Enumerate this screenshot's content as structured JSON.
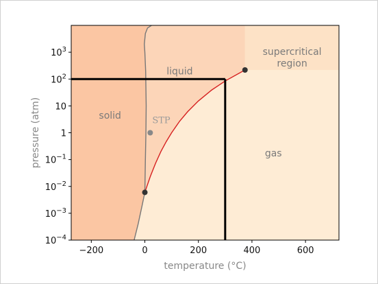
{
  "chart_data": {
    "type": "line",
    "title": "",
    "xlabel": "temperature (°C)",
    "ylabel": "pressure (atm)",
    "xlim": [
      -275,
      725
    ],
    "ylim_log10": [
      -4,
      4.0
    ],
    "yscale": "log",
    "x_ticks": [
      {
        "value": -200,
        "label": "−200"
      },
      {
        "value": 0,
        "label": "0"
      },
      {
        "value": 200,
        "label": "200"
      },
      {
        "value": 400,
        "label": "400"
      },
      {
        "value": 600,
        "label": "600"
      }
    ],
    "y_ticks": [
      {
        "exp": -4,
        "base": "10",
        "sup": "−4"
      },
      {
        "exp": -3,
        "base": "10",
        "sup": "−3"
      },
      {
        "exp": -2,
        "base": "10",
        "sup": "−2"
      },
      {
        "exp": -1,
        "base": "10",
        "sup": "−1"
      },
      {
        "exp": 0,
        "base": "1",
        "sup": ""
      },
      {
        "exp": 1,
        "base": "10",
        "sup": ""
      },
      {
        "exp": 2,
        "base": "10",
        "sup": "2"
      },
      {
        "exp": 3,
        "base": "10",
        "sup": "3"
      }
    ],
    "regions": [
      {
        "name": "solid",
        "label": "solid",
        "color": "#fbc6a3",
        "label_at": {
          "x": -130,
          "p": 3.3
        }
      },
      {
        "name": "liquid",
        "label": "liquid",
        "color": "#fcd5b8",
        "label_at": {
          "x": 130,
          "p": 150
        }
      },
      {
        "name": "gas",
        "label": "gas",
        "color": "#feecd5",
        "label_at": {
          "x": 480,
          "p": 0.13
        }
      },
      {
        "name": "supercritical",
        "label": [
          "supercritical",
          "region"
        ],
        "color": "#fde2c6",
        "label_at": {
          "x": 550,
          "p": 800
        }
      }
    ],
    "series": [
      {
        "id": "melting-curve",
        "color": "#777777",
        "x": [
          -40,
          -25,
          -10,
          0.01,
          2,
          4,
          5,
          3,
          0,
          -2,
          2,
          10,
          25
        ],
        "y": [
          0.0001,
          0.0004,
          0.002,
          0.006,
          0.1,
          1,
          10,
          200,
          1000,
          2000,
          5000,
          8000,
          10000
        ]
      },
      {
        "id": "vaporization-curve",
        "color": "#d62020",
        "x": [
          0.01,
          20,
          40,
          60,
          80,
          100,
          130,
          160,
          200,
          250,
          300,
          374
        ],
        "y": [
          0.006,
          0.023,
          0.073,
          0.2,
          0.47,
          1.0,
          2.7,
          6.1,
          15.3,
          39.3,
          84.8,
          218
        ]
      }
    ],
    "points": [
      {
        "id": "triple-point",
        "x": 0.01,
        "y": 0.006,
        "color": "#333333"
      },
      {
        "id": "critical-point",
        "x": 374,
        "y": 218,
        "color": "#333333"
      },
      {
        "id": "stp-point",
        "x": 20,
        "y": 1,
        "color": "#888888",
        "label": "STP"
      }
    ],
    "guide_lines": {
      "x": 300,
      "y": 100,
      "color": "#000000"
    }
  }
}
